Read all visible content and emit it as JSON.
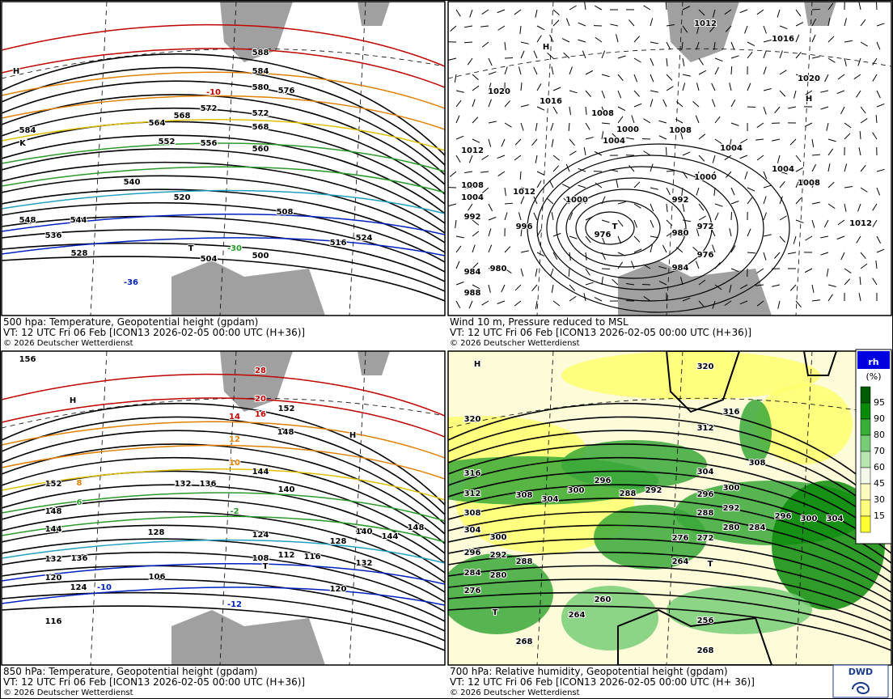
{
  "panels": [
    {
      "caption": "500 hpa: Temperature, Geopotential height (gpdam)",
      "valid_time": "VT: 12 UTC Fri  06 Feb [ICON13 2026-02-05 00:00 UTC (H+36)]",
      "copyright": "© 2026 Deutscher Wetterdienst",
      "labels": [
        "588",
        "584",
        "580",
        "576",
        "572",
        "572",
        "568",
        "568",
        "564",
        "560",
        "556",
        "552",
        "548",
        "544",
        "540",
        "536",
        "528",
        "524",
        "520",
        "516",
        "508",
        "504",
        "500",
        "584",
        "H",
        "T",
        "K",
        "-10",
        "-30",
        "-36"
      ]
    },
    {
      "caption": "Wind 10 m, Pressure reduced to MSL",
      "valid_time": "VT: 12 UTC Fri  06 Feb [ICON13 2026-02-05 00:00 UTC (H+36)]",
      "copyright": "© 2026 Deutscher Wetterdienst",
      "labels": [
        "1012",
        "1016",
        "1020",
        "1016",
        "1020",
        "1008",
        "1000",
        "1004",
        "1008",
        "1012",
        "1004",
        "1000",
        "1004",
        "1008",
        "992",
        "1000",
        "1012",
        "1008",
        "1004",
        "992",
        "996",
        "976",
        "980",
        "972",
        "1012",
        "976",
        "984",
        "980",
        "984",
        "988",
        "H",
        "H",
        "T"
      ]
    },
    {
      "caption": "850 hPa:  Temperature, Geopotential height (gpdam)",
      "valid_time": "VT: 12 UTC Fri  06 Feb [ICON13 2026-02-05 00:00 UTC (H+36)]",
      "copyright": "© 2026 Deutscher Wetterdienst",
      "labels": [
        "156",
        "152",
        "148",
        "144",
        "132",
        "120",
        "116",
        "148",
        "144",
        "140",
        "136",
        "132",
        "128",
        "124",
        "120",
        "116",
        "112",
        "108",
        "106",
        "136",
        "124",
        "128",
        "132",
        "140",
        "144",
        "148",
        "152",
        "28",
        "20",
        "14",
        "16",
        "12",
        "10",
        "8",
        "6",
        "-2",
        "-12",
        "-10",
        "H",
        "H",
        "T"
      ]
    },
    {
      "caption": "700 hPa:  Relative humidity, Geopotential height (gpdam)",
      "valid_time": "VT: 12 UTC Fri  06 Feb [ICON13 2026-02-05 00:00 UTC (H+ 36)]",
      "copyright": "© 2026 Deutscher Wetterdienst",
      "labels": [
        "320",
        "320",
        "316",
        "312",
        "316",
        "312",
        "308",
        "304",
        "308",
        "304",
        "300",
        "296",
        "300",
        "296",
        "292",
        "288",
        "284",
        "280",
        "276",
        "288",
        "292",
        "304",
        "300",
        "296",
        "292",
        "288",
        "280",
        "276",
        "272",
        "264",
        "284",
        "260",
        "264",
        "256",
        "268",
        "268",
        "308",
        "304",
        "300",
        "296",
        "H",
        "T",
        "T"
      ]
    }
  ],
  "legend": {
    "title": "rh",
    "unit": "(%)",
    "ticks": [
      "95",
      "90",
      "80",
      "70",
      "60",
      "45",
      "30",
      "15"
    ],
    "colors": [
      "#005a00",
      "#0a8a0a",
      "#38b038",
      "#78cc78",
      "#b8e6b0",
      "#f4f8e8",
      "#fffcc0",
      "#ffff80",
      "#ffff30"
    ]
  },
  "logo": "DWD"
}
